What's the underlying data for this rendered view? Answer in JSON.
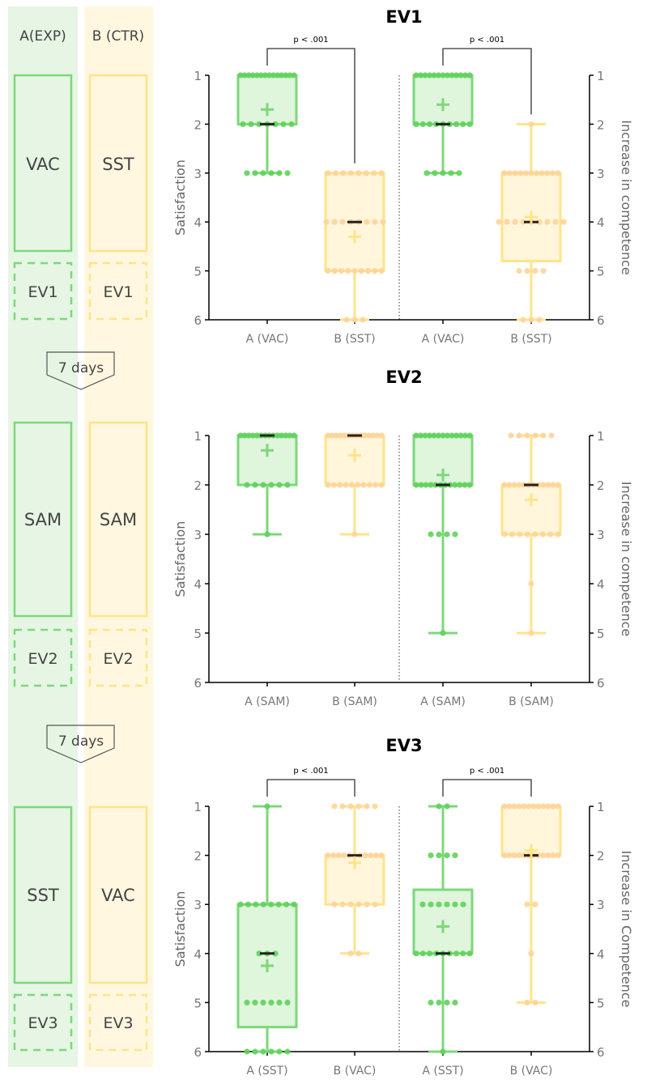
{
  "scheme": {
    "groups": [
      {
        "label": "A(EXP)",
        "color": "#7dd87a",
        "bg": "#e6f5e4"
      },
      {
        "label": "B (CTR)",
        "color": "#ffe487",
        "bg": "#fff7e0"
      }
    ],
    "sessions": [
      {
        "a": "VAC",
        "b": "SST",
        "eval": "EV1"
      },
      {
        "a": "SAM",
        "b": "SAM",
        "eval": "EV2"
      },
      {
        "a": "SST",
        "b": "VAC",
        "eval": "EV3"
      }
    ],
    "intervals": [
      "7 days",
      "7 days"
    ]
  },
  "colors": {
    "green_stroke": "#7dd87a",
    "green_fill": "#dff5dc",
    "green_dot": "#5fd35a",
    "yellow_stroke": "#ffe487",
    "yellow_fill": "#fff6dc",
    "yellow_dot": "#ffd49a",
    "median": "#222222"
  },
  "chart_data": [
    {
      "type": "box",
      "title": "EV1",
      "ylabel_left": "Satisfaction",
      "ylabel_right": "Increase in  competence",
      "ylim": [
        1,
        6
      ],
      "y_inverted": true,
      "yticks": [
        1,
        2,
        3,
        4,
        5,
        6
      ],
      "categories": [
        "A (VAC)",
        "B (SST)",
        "A (VAC)",
        "B (SST)"
      ],
      "significance": [
        {
          "from": 0,
          "to": 1,
          "label": "p < .001"
        },
        {
          "from": 2,
          "to": 3,
          "label": "p < .001"
        }
      ],
      "boxes": [
        {
          "group": "A",
          "q1": 1,
          "median": 2,
          "q3": 2,
          "whisker_low": 1,
          "whisker_high": 3,
          "mean": 1.7,
          "points": [
            {
              "y": 1,
              "n": 14
            },
            {
              "y": 2,
              "n": 7
            },
            {
              "y": 3,
              "n": 6
            }
          ]
        },
        {
          "group": "B",
          "q1": 3,
          "median": 4,
          "q3": 5,
          "whisker_low": 3,
          "whisker_high": 6,
          "mean": 4.3,
          "points": [
            {
              "y": 3,
              "n": 8
            },
            {
              "y": 4,
              "n": 8
            },
            {
              "y": 5,
              "n": 9
            },
            {
              "y": 6,
              "n": 3
            }
          ]
        },
        {
          "group": "A",
          "q1": 1,
          "median": 2,
          "q3": 2,
          "whisker_low": 1,
          "whisker_high": 3,
          "mean": 1.6,
          "points": [
            {
              "y": 1,
              "n": 13
            },
            {
              "y": 2,
              "n": 9
            },
            {
              "y": 3,
              "n": 5
            }
          ]
        },
        {
          "group": "B",
          "q1": 3,
          "median": 4,
          "q3": 4.8,
          "whisker_low": 2,
          "whisker_high": 6,
          "mean": 3.9,
          "points": [
            {
              "y": 2,
              "n": 1
            },
            {
              "y": 3,
              "n": 11
            },
            {
              "y": 4,
              "n": 9
            },
            {
              "y": 5,
              "n": 4
            },
            {
              "y": 6,
              "n": 3
            }
          ]
        }
      ]
    },
    {
      "type": "box",
      "title": "EV2",
      "ylabel_left": "Satisfaction",
      "ylabel_right": "Increase in  competence",
      "ylim": [
        1,
        6
      ],
      "y_inverted": true,
      "yticks": [
        1,
        2,
        3,
        4,
        5,
        6
      ],
      "categories": [
        "A (SAM)",
        "B (SAM)",
        "A (SAM)",
        "B (SAM)"
      ],
      "significance": [],
      "boxes": [
        {
          "group": "A",
          "q1": 1,
          "median": 1,
          "q3": 2,
          "whisker_low": 1,
          "whisker_high": 3,
          "mean": 1.3,
          "points": [
            {
              "y": 1,
              "n": 14
            },
            {
              "y": 2,
              "n": 6
            },
            {
              "y": 3,
              "n": 1
            }
          ]
        },
        {
          "group": "B",
          "q1": 1,
          "median": 1,
          "q3": 2,
          "whisker_low": 1,
          "whisker_high": 3,
          "mean": 1.4,
          "points": [
            {
              "y": 1,
              "n": 14
            },
            {
              "y": 2,
              "n": 10
            },
            {
              "y": 3,
              "n": 1
            }
          ]
        },
        {
          "group": "A",
          "q1": 1,
          "median": 2,
          "q3": 2,
          "whisker_low": 1,
          "whisker_high": 5,
          "mean": 1.8,
          "points": [
            {
              "y": 1,
              "n": 13
            },
            {
              "y": 2,
              "n": 12
            },
            {
              "y": 3,
              "n": 4
            },
            {
              "y": 5,
              "n": 1
            }
          ]
        },
        {
          "group": "B",
          "q1": 2,
          "median": 2,
          "q3": 3,
          "whisker_low": 1,
          "whisker_high": 5,
          "mean": 2.3,
          "points": [
            {
              "y": 1,
              "n": 6
            },
            {
              "y": 2,
              "n": 12
            },
            {
              "y": 3,
              "n": 8
            },
            {
              "y": 4,
              "n": 1
            },
            {
              "y": 5,
              "n": 1
            }
          ]
        }
      ]
    },
    {
      "type": "box",
      "title": "EV3",
      "ylabel_left": "Satisfaction",
      "ylabel_right": "Increase in Competence",
      "ylim": [
        1,
        6
      ],
      "y_inverted": true,
      "yticks": [
        1,
        2,
        3,
        4,
        5,
        6
      ],
      "categories": [
        "A (SST)",
        "B (VAC)",
        "A (SST)",
        "B (VAC)"
      ],
      "significance": [
        {
          "from": 0,
          "to": 1,
          "label": "p < .001"
        },
        {
          "from": 2,
          "to": 3,
          "label": "p < .001"
        }
      ],
      "boxes": [
        {
          "group": "A",
          "q1": 3,
          "median": 4,
          "q3": 5.5,
          "whisker_low": 1,
          "whisker_high": 6,
          "mean": 4.25,
          "points": [
            {
              "y": 1,
              "n": 1
            },
            {
              "y": 3,
              "n": 8
            },
            {
              "y": 4,
              "n": 3
            },
            {
              "y": 5,
              "n": 6
            },
            {
              "y": 6,
              "n": 6
            }
          ]
        },
        {
          "group": "B",
          "q1": 2,
          "median": 2,
          "q3": 3,
          "whisker_low": 1,
          "whisker_high": 4,
          "mean": 2.15,
          "points": [
            {
              "y": 1,
              "n": 6
            },
            {
              "y": 2,
              "n": 11
            },
            {
              "y": 3,
              "n": 6
            },
            {
              "y": 4,
              "n": 2
            }
          ]
        },
        {
          "group": "A",
          "q1": 2.7,
          "median": 4,
          "q3": 4,
          "whisker_low": 1,
          "whisker_high": 6,
          "mean": 3.45,
          "points": [
            {
              "y": 1,
              "n": 2
            },
            {
              "y": 2,
              "n": 4
            },
            {
              "y": 3,
              "n": 6
            },
            {
              "y": 4,
              "n": 9
            },
            {
              "y": 5,
              "n": 4
            },
            {
              "y": 6,
              "n": 1
            }
          ]
        },
        {
          "group": "B",
          "q1": 1,
          "median": 2,
          "q3": 2,
          "whisker_low": 1,
          "whisker_high": 5,
          "mean": 1.9,
          "points": [
            {
              "y": 1,
              "n": 12
            },
            {
              "y": 2,
              "n": 12
            },
            {
              "y": 3,
              "n": 2
            },
            {
              "y": 4,
              "n": 1
            },
            {
              "y": 5,
              "n": 2
            }
          ]
        }
      ]
    }
  ]
}
